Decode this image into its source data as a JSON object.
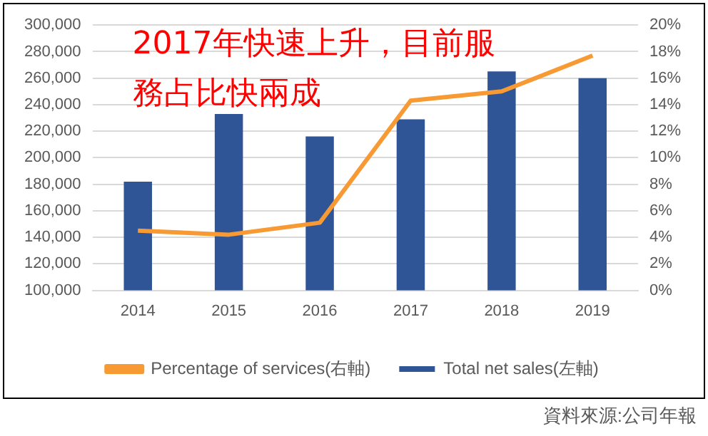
{
  "chart_data": {
    "type": "bar",
    "categories": [
      "2014",
      "2015",
      "2016",
      "2017",
      "2018",
      "2019"
    ],
    "series": [
      {
        "name": "Total net sales(左軸)",
        "color": "#2f5597",
        "values": [
          182000,
          233000,
          216000,
          229000,
          265000,
          260000
        ]
      },
      {
        "name": "Percentage of services(右軸)",
        "type": "line",
        "axis": "y2",
        "color": "#f79a33",
        "values": [
          4.5,
          4.2,
          5.1,
          14.3,
          15.0,
          17.7
        ]
      }
    ],
    "ylim": [
      100000,
      300000
    ],
    "yticks": [
      {
        "value": 100000,
        "label": "100,000"
      },
      {
        "value": 120000,
        "label": "120,000"
      },
      {
        "value": 140000,
        "label": "140,000"
      },
      {
        "value": 160000,
        "label": "160,000"
      },
      {
        "value": 180000,
        "label": "180,000"
      },
      {
        "value": 200000,
        "label": "200,000"
      },
      {
        "value": 220000,
        "label": "220,000"
      },
      {
        "value": 240000,
        "label": "240,000"
      },
      {
        "value": 260000,
        "label": "260,000"
      },
      {
        "value": 280000,
        "label": "280,000"
      },
      {
        "value": 300000,
        "label": "300,000"
      }
    ],
    "y2lim": [
      0,
      20
    ],
    "y2ticks": [
      {
        "value": 0,
        "label": "0%"
      },
      {
        "value": 2,
        "label": "2%"
      },
      {
        "value": 4,
        "label": "4%"
      },
      {
        "value": 6,
        "label": "6%"
      },
      {
        "value": 8,
        "label": "8%"
      },
      {
        "value": 10,
        "label": "10%"
      },
      {
        "value": 12,
        "label": "12%"
      },
      {
        "value": 14,
        "label": "14%"
      },
      {
        "value": 16,
        "label": "16%"
      },
      {
        "value": 18,
        "label": "18%"
      },
      {
        "value": 20,
        "label": "20%"
      }
    ],
    "grid": "y",
    "legend": "bottom",
    "marker": "none",
    "line_style": "solid",
    "annotations": [
      "2017年快速上升，目前服務占比快兩成",
      "資料來源:公司年報"
    ]
  }
}
